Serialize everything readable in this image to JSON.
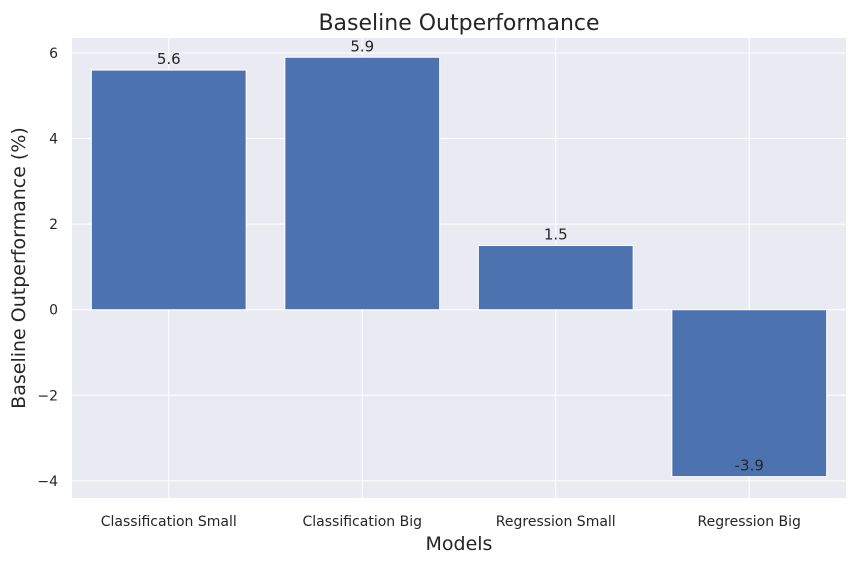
{
  "chart_data": {
    "type": "bar",
    "title": "Baseline Outperformance",
    "xlabel": "Models",
    "ylabel": "Baseline Outperformance (%)",
    "categories": [
      "Classification Small",
      "Classification Big",
      "Regression Small",
      "Regression Big"
    ],
    "values": [
      5.6,
      5.9,
      1.5,
      -3.9
    ],
    "data_labels": [
      "5.6",
      "5.9",
      "1.5",
      "-3.9"
    ],
    "ylim": [
      -4.4,
      6.35
    ],
    "yticks": [
      -4,
      -2,
      0,
      2,
      4,
      6
    ],
    "ytick_labels": [
      "−4",
      "−2",
      "0",
      "2",
      "4",
      "6"
    ],
    "grid": true,
    "colors": {
      "bar": "#4c72b0",
      "background": "#eaeaf2",
      "grid": "#ffffff"
    }
  }
}
